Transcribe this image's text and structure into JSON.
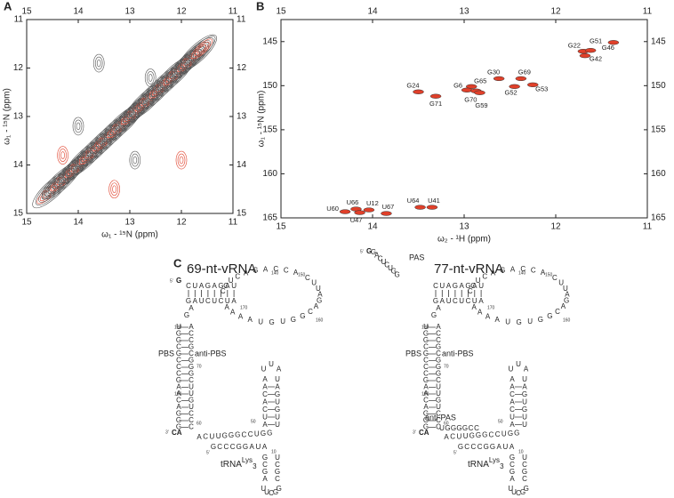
{
  "panels": [
    "A",
    "B",
    "C"
  ],
  "chart_data": [
    {
      "type": "contour",
      "xlabel": "ω₁ - ¹⁵N (ppm)",
      "ylabel": "ω₁ - ¹⁵N (ppm)",
      "xlim": [
        15,
        11
      ],
      "ylim": [
        11,
        15
      ],
      "xticks": [
        15,
        14,
        13,
        12,
        11
      ],
      "yticks": [
        11,
        12,
        13,
        14,
        15
      ],
      "colors": [
        "#555555",
        "#e0402a"
      ]
    },
    {
      "type": "scatter",
      "xlabel": "ω₂ - ¹H (ppm)",
      "ylabel": "ω₁ - ¹⁵N (ppm)",
      "xlim": [
        15,
        11
      ],
      "ylim": [
        142.5,
        165
      ],
      "xticks": [
        15,
        14,
        13,
        12,
        11
      ],
      "yticks": [
        145,
        150,
        155,
        160,
        165
      ],
      "color": "#e0402a",
      "labels": [
        "G22",
        "G51",
        "G42",
        "G46",
        "G30",
        "G69",
        "G53",
        "G52",
        "G65",
        "G6",
        "G70",
        "G59",
        "G24",
        "G71",
        "U60",
        "U66",
        "U47",
        "U12",
        "U67",
        "U64",
        "U41"
      ],
      "x": [
        11.7,
        11.62,
        11.68,
        11.37,
        12.62,
        12.38,
        12.25,
        12.45,
        12.92,
        12.97,
        12.87,
        12.83,
        13.5,
        13.31,
        14.3,
        14.18,
        14.14,
        14.04,
        13.85,
        13.48,
        13.35
      ],
      "values": [
        146.1,
        146.0,
        146.6,
        145.1,
        149.2,
        149.2,
        149.9,
        150.1,
        150.1,
        150.5,
        150.6,
        150.8,
        150.7,
        151.2,
        164.3,
        164.0,
        164.4,
        164.1,
        164.5,
        163.8,
        163.8
      ]
    }
  ],
  "diagram": {
    "structures": [
      {
        "title": "69-nt-vRNA",
        "start": "G",
        "end": "CA",
        "five": "5′",
        "three": "3′",
        "pbs": "PBS",
        "anti_pbs": "anti-PBS",
        "strands": {
          "stem_top": "CUAGAGAU",
          "stem_bottom": "GAUCUCUA",
          "loop_top": "CCUCAGACCA",
          "loop_return": "CUUAGACGGUGUAAAA",
          "linker": "AG",
          "pbs_strand": "UGGCGCCCGAACAGGG",
          "anti_pbs_strand": "ACCGCGGGCUUGUCCC",
          "junction": "ACUUGGGCCUGG",
          "acceptor": "GCCCGGAUA",
          "hairpin_up": "AUCACAA",
          "hairpin_loop": "UUA",
          "hairpin_down": "UAGUGUU",
          "lower_up": "GCGA",
          "lower_loop": "UUCGG",
          "lower_down": "CGCU"
        },
        "numbers": [
          "140",
          "150",
          "170",
          "160",
          "180",
          "70",
          "190",
          "60",
          "50",
          "10"
        ],
        "trna": {
          "base": "tRNA",
          "sup": "Lys",
          "sub": "3"
        }
      },
      {
        "title": "77-nt-vRNA",
        "start": "G",
        "end": "CA",
        "five": "5′",
        "three": "3′",
        "pbs": "PBS",
        "anti_pbs": "anti-PBS",
        "pas": "PAS",
        "anti_pas": "anti-PAS",
        "strands": {
          "stem_top": "CUAGAGAU",
          "stem_bottom": "GAUCUCUA",
          "loop_top": "CCUCAGACCA",
          "loop_return": "CUUAGACGGUGUAAAA",
          "linker": "AG",
          "pbs_strand": "UGGCGCCCGAACAGGG",
          "anti_pbs_strand": "ACCGCGGGCUUGUCCC",
          "junction": "ACUUGGGCCUGG",
          "acceptor": "GCCCGGAUA",
          "hairpin_up": "AUCACAA",
          "hairpin_loop": "UUA",
          "hairpin_down": "UAGUGUU",
          "lower_up": "GCGA",
          "lower_loop": "UUCGG",
          "lower_down": "CGCU",
          "pas_strand": "GACUCUGG",
          "anti_pas_strand": "UGGGGCC"
        },
        "numbers": [
          "140",
          "150",
          "170",
          "160",
          "180",
          "70",
          "190",
          "60",
          "50",
          "10"
        ],
        "trna": {
          "base": "tRNA",
          "sup": "Lys",
          "sub": "3"
        }
      }
    ]
  }
}
